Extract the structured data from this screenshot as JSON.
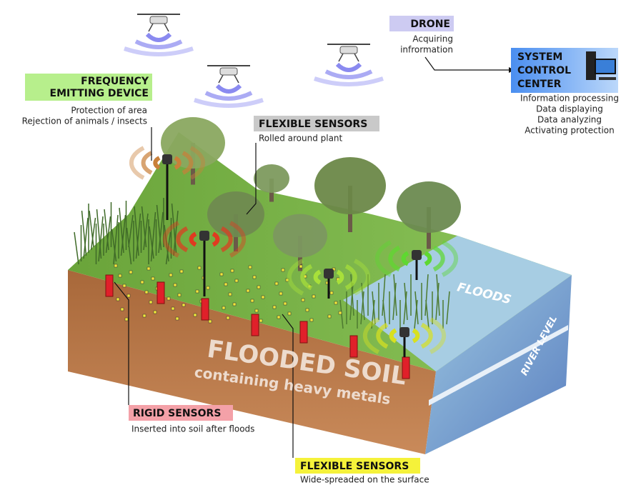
{
  "drone": {
    "title": "DRONE",
    "lines": [
      "Acquiring",
      "infrormation"
    ]
  },
  "control_center": {
    "title": [
      "SYSTEM",
      "CONTROL",
      "CENTER"
    ],
    "lines": [
      "Information processing",
      "Data displaying",
      "Data analyzing",
      "Activating protection"
    ]
  },
  "frequency_device": {
    "title": [
      "FREQUENCY",
      "EMITTING DEVICE"
    ],
    "lines": [
      "Protection of area",
      "Rejection of animals / insects"
    ]
  },
  "flexible_sensors_plant": {
    "title": "FLEXIBLE SENSORS",
    "lines": [
      "Rolled around plant"
    ]
  },
  "rigid_sensors": {
    "title": "RIGID SENSORS",
    "lines": [
      "Inserted into soil after floods"
    ]
  },
  "flexible_sensors_surface": {
    "title": "FLEXIBLE SENSORS",
    "lines": [
      "Wide-spreaded on the surface"
    ]
  },
  "soil": {
    "title": "FLOODED SOIL",
    "subtitle": "containing heavy metals"
  },
  "floods": "FLOODS",
  "river_level": "RIVER LEVEL"
}
